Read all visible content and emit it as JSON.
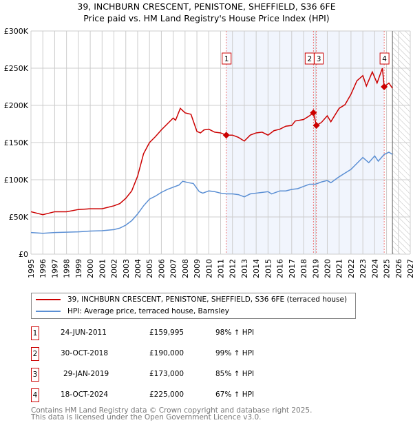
{
  "chart_data": {
    "type": "line",
    "title": "39, INCHBURN CRESCENT, PENISTONE, SHEFFIELD, S36 6FE",
    "subtitle": "Price paid vs. HM Land Registry's House Price Index (HPI)",
    "xlim": [
      1995,
      2027
    ],
    "ylim": [
      0,
      300000
    ],
    "x_ticks": [
      "1995",
      "1996",
      "1997",
      "1998",
      "1999",
      "2000",
      "2001",
      "2002",
      "2003",
      "2004",
      "2005",
      "2006",
      "2007",
      "2008",
      "2009",
      "2010",
      "2011",
      "2012",
      "2013",
      "2014",
      "2015",
      "2016",
      "2017",
      "2018",
      "2019",
      "2020",
      "2021",
      "2022",
      "2023",
      "2024",
      "2025",
      "2026",
      "2027"
    ],
    "y_ticks": [
      {
        "v": 0,
        "label": "£0"
      },
      {
        "v": 50000,
        "label": "£50K"
      },
      {
        "v": 100000,
        "label": "£100K"
      },
      {
        "v": 150000,
        "label": "£150K"
      },
      {
        "v": 200000,
        "label": "£200K"
      },
      {
        "v": 250000,
        "label": "£250K"
      },
      {
        "v": 300000,
        "label": "£300K"
      }
    ],
    "grid": true,
    "shaded_range": [
      2011.48,
      2024.8
    ],
    "hatched_from": 2025.5,
    "series": [
      {
        "name": "39, INCHBURN CRESCENT, PENISTONE, SHEFFIELD, S36 6FE (terraced house)",
        "color": "#cc0000",
        "x": [
          1995,
          1996,
          1997,
          1998,
          1999,
          2000,
          2001,
          2002,
          2002.5,
          2003,
          2003.5,
          2004,
          2004.5,
          2005,
          2005.5,
          2006,
          2006.5,
          2007,
          2007.2,
          2007.6,
          2008,
          2008.5,
          2009,
          2009.3,
          2009.6,
          2010,
          2010.5,
          2011,
          2011.48,
          2012,
          2012.5,
          2013,
          2013.5,
          2014,
          2014.5,
          2015,
          2015.5,
          2016,
          2016.5,
          2017,
          2017.3,
          2018,
          2018.5,
          2018.83,
          2019.08,
          2019.5,
          2020,
          2020.3,
          2021,
          2021.5,
          2022,
          2022.5,
          2023,
          2023.3,
          2023.8,
          2024.2,
          2024.65,
          2024.8,
          2025.2,
          2025.5
        ],
        "values": [
          57000,
          53000,
          57000,
          57000,
          60000,
          61000,
          61000,
          65000,
          68000,
          75000,
          85000,
          105000,
          135000,
          150000,
          158000,
          167000,
          175000,
          183000,
          180000,
          196000,
          190000,
          188000,
          165000,
          163000,
          167000,
          168000,
          164000,
          163000,
          159995,
          160000,
          157000,
          152000,
          160000,
          163000,
          164000,
          160000,
          166000,
          168000,
          172000,
          173000,
          179000,
          181000,
          186000,
          190000,
          173000,
          177000,
          186000,
          178000,
          196000,
          201000,
          215000,
          233000,
          240000,
          226000,
          245000,
          230000,
          250000,
          225000,
          230000,
          223000
        ]
      },
      {
        "name": "HPI: Average price, terraced house, Barnsley",
        "color": "#5b8fd4",
        "x": [
          1995,
          1996,
          1997,
          1998,
          1999,
          2000,
          2001,
          2002,
          2002.5,
          2003,
          2003.5,
          2004,
          2004.5,
          2005,
          2005.5,
          2006,
          2006.5,
          2007,
          2007.5,
          2007.8,
          2008.3,
          2008.7,
          2009.2,
          2009.5,
          2010,
          2010.5,
          2011,
          2011.5,
          2012,
          2012.5,
          2013,
          2013.5,
          2014,
          2014.5,
          2015,
          2015.3,
          2016,
          2016.5,
          2017,
          2017.5,
          2018,
          2018.5,
          2019,
          2019.5,
          2020,
          2020.3,
          2021,
          2021.5,
          2022,
          2022.5,
          2023,
          2023.5,
          2024,
          2024.3,
          2024.8,
          2025.2,
          2025.5
        ],
        "values": [
          29000,
          28000,
          29000,
          29500,
          30000,
          31000,
          31500,
          33000,
          35000,
          39000,
          45000,
          54000,
          65000,
          74000,
          78000,
          83000,
          87000,
          90000,
          93000,
          98000,
          96000,
          95000,
          84000,
          82000,
          85000,
          84000,
          82000,
          81000,
          81000,
          80000,
          77000,
          81000,
          82000,
          83000,
          84000,
          81000,
          85000,
          85000,
          87000,
          88000,
          91000,
          94000,
          94000,
          97000,
          99000,
          96000,
          104000,
          109000,
          114000,
          122000,
          130000,
          123000,
          132000,
          125000,
          134000,
          137000,
          134000
        ]
      }
    ],
    "sales": [
      {
        "n": "1",
        "x": 2011.48,
        "value": 159995,
        "date": "24-JUN-2011",
        "price": "£159,995",
        "hpi": "98% ↑ HPI"
      },
      {
        "n": "2",
        "x": 2018.83,
        "value": 190000,
        "date": "30-OCT-2018",
        "price": "£190,000",
        "hpi": "99% ↑ HPI"
      },
      {
        "n": "3",
        "x": 2019.08,
        "value": 173000,
        "date": "29-JAN-2019",
        "price": "£173,000",
        "hpi": "85% ↑ HPI"
      },
      {
        "n": "4",
        "x": 2024.8,
        "value": 225000,
        "date": "18-OCT-2024",
        "price": "£225,000",
        "hpi": "67% ↑ HPI"
      }
    ]
  },
  "footer": [
    "Contains HM Land Registry data © Crown copyright and database right 2025.",
    "This data is licensed under the Open Government Licence v3.0."
  ]
}
